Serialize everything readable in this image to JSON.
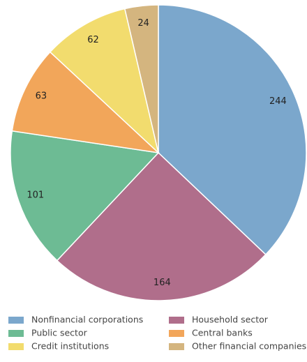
{
  "chart_data": {
    "type": "pie",
    "categories": [
      "Nonfinancial corporations",
      "Household sector",
      "Public sector",
      "Central banks",
      "Credit institutions",
      "Other financial companies"
    ],
    "values": [
      244,
      164,
      101,
      63,
      62,
      24
    ],
    "colors": [
      "#7ba7cc",
      "#b06e8b",
      "#6dbb94",
      "#f2a65a",
      "#f2dc6e",
      "#d4b57f"
    ],
    "legend": "bottom"
  }
}
